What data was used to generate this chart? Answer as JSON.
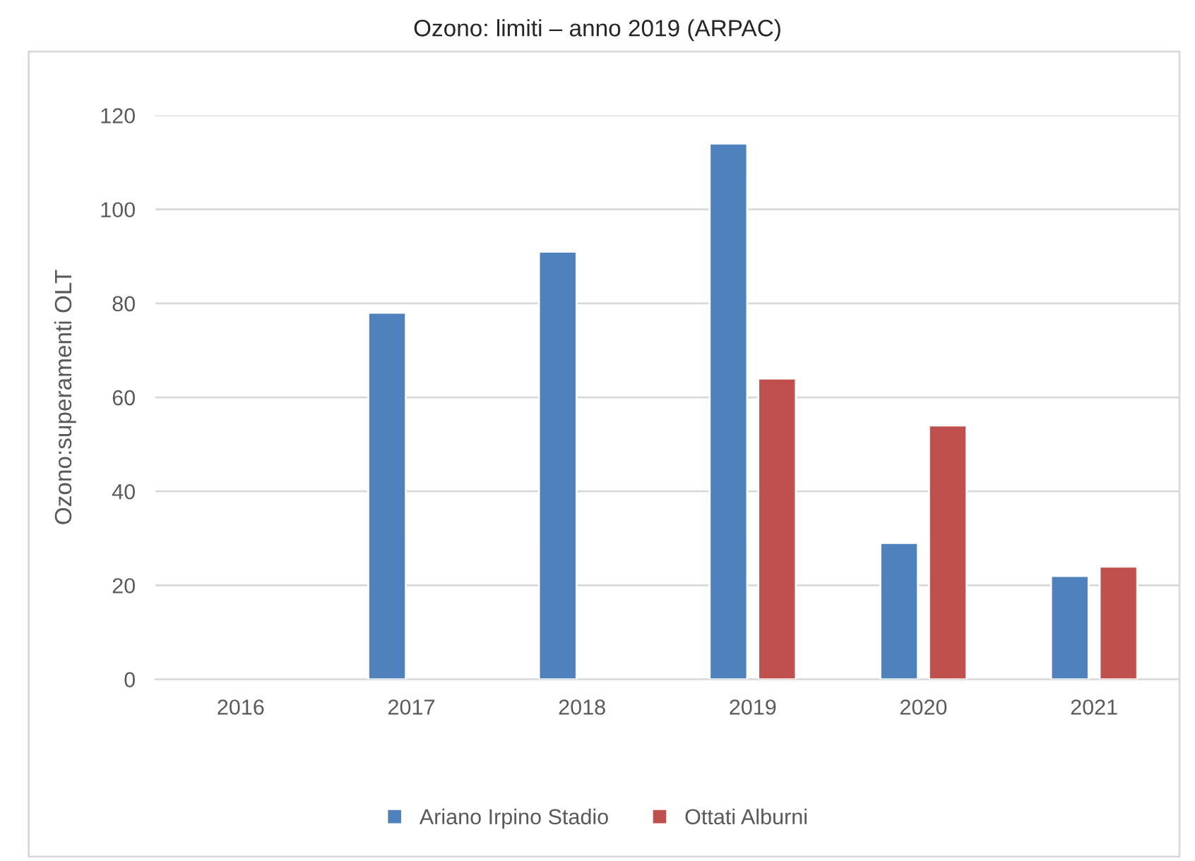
{
  "chart_data": {
    "type": "bar",
    "title": "Ozono: limiti – anno 2019 (ARPAC)",
    "ylabel": "Ozono:superamenti OLT",
    "categories": [
      "2016",
      "2017",
      "2018",
      "2019",
      "2020",
      "2021"
    ],
    "series": [
      {
        "name": "Ariano Irpino Stadio",
        "color": "#4f81bd",
        "values": [
          null,
          78,
          91,
          114,
          29,
          22
        ]
      },
      {
        "name": "Ottati Alburni",
        "color": "#c0504d",
        "values": [
          null,
          null,
          null,
          64,
          54,
          24
        ]
      }
    ],
    "ylim": [
      0,
      120
    ],
    "yticks": [
      0,
      20,
      40,
      60,
      80,
      100,
      120
    ],
    "grid": "y",
    "legend": "bottom"
  }
}
